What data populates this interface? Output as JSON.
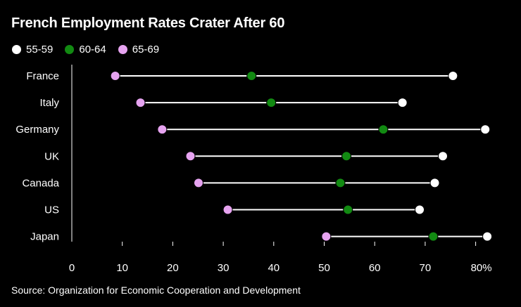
{
  "chart_data": {
    "type": "dumbbell",
    "title": "French Employment Rates Crater After 60",
    "source": "Source: Organization for Economic Cooperation and Development",
    "categories": [
      "France",
      "Italy",
      "Germany",
      "UK",
      "Canada",
      "US",
      "Japan"
    ],
    "series": [
      {
        "name": "55-59",
        "color": "#ffffff",
        "values": [
          75.5,
          65.5,
          81.9,
          73.5,
          71.9,
          68.9,
          82.3
        ]
      },
      {
        "name": "60-64",
        "color": "#128a12",
        "values": [
          35.6,
          39.5,
          61.7,
          54.4,
          53.2,
          54.7,
          71.6
        ]
      },
      {
        "name": "65-69",
        "color": "#e6a3f0",
        "values": [
          8.6,
          13.6,
          17.9,
          23.5,
          25.1,
          30.9,
          50.4
        ]
      }
    ],
    "x_ticks": [
      "0",
      "10",
      "20",
      "30",
      "40",
      "50",
      "60",
      "70",
      "80%"
    ],
    "xlim": [
      0,
      80
    ]
  }
}
